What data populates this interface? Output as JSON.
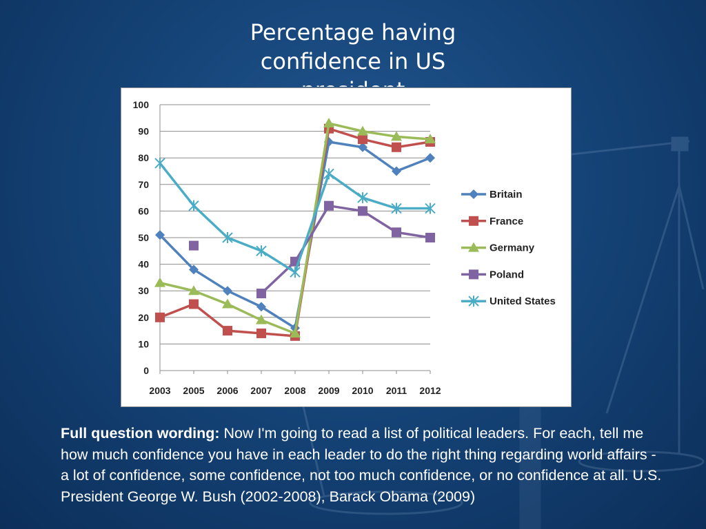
{
  "slide": {
    "title": "Percentage having confidence in US president",
    "wording_label": "Full question wording:",
    "wording_text": " Now I'm going to read a list of political leaders. For each, tell me how much confidence you have in each leader to do the right thing regarding world affairs - a lot of confidence, some confidence, not too much confidence, or no confidence at all. U.S. President George W. Bush (2002-2008), Barack Obama (2009)"
  },
  "chart_data": {
    "type": "line",
    "title": "Percentage having confidence in US president",
    "categories": [
      "2003",
      "2005",
      "2006",
      "2007",
      "2008",
      "2009",
      "2010",
      "2011",
      "2012"
    ],
    "ylim": [
      0,
      100
    ],
    "yticks": [
      0,
      10,
      20,
      30,
      40,
      50,
      60,
      70,
      80,
      90,
      100
    ],
    "grid": true,
    "legend": "right",
    "series": [
      {
        "name": "Britain",
        "color": "#4f81bd",
        "marker": "diamond",
        "values": [
          51,
          38,
          30,
          24,
          16,
          86,
          84,
          75,
          80
        ]
      },
      {
        "name": "France",
        "color": "#c0504d",
        "marker": "square",
        "values": [
          20,
          25,
          15,
          14,
          13,
          91,
          87,
          84,
          86
        ]
      },
      {
        "name": "Germany",
        "color": "#9bbb59",
        "marker": "triangle",
        "values": [
          33,
          30,
          25,
          19,
          14,
          93,
          90,
          88,
          87
        ]
      },
      {
        "name": "Poland",
        "color": "#8064a2",
        "marker": "square",
        "values": [
          null,
          47,
          null,
          29,
          41,
          62,
          60,
          52,
          50
        ]
      },
      {
        "name": "United States",
        "color": "#4bacc6",
        "marker": "star",
        "values": [
          78,
          62,
          50,
          45,
          37,
          74,
          65,
          61,
          61
        ]
      }
    ]
  }
}
